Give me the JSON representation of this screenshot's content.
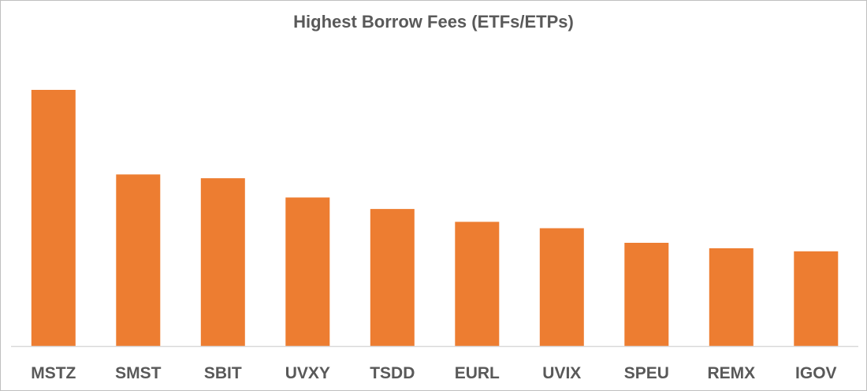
{
  "chart_data": {
    "type": "bar",
    "title": "Highest Borrow Fees (ETFs/ETPs)",
    "xlabel": "",
    "ylabel": "",
    "categories": [
      "MSTZ",
      "SMST",
      "SBIT",
      "UVXY",
      "TSDD",
      "EURL",
      "UVIX",
      "SPEU",
      "REMX",
      "IGOV"
    ],
    "values": [
      100,
      67,
      65.5,
      58,
      53.5,
      48.5,
      46,
      40.3,
      38.2,
      37
    ],
    "ylim": [
      0,
      100
    ],
    "grid": false,
    "legend": "none",
    "colors": {
      "bar": "#ED7D31",
      "axis": "#d9d9d9",
      "text": "#595959"
    }
  }
}
